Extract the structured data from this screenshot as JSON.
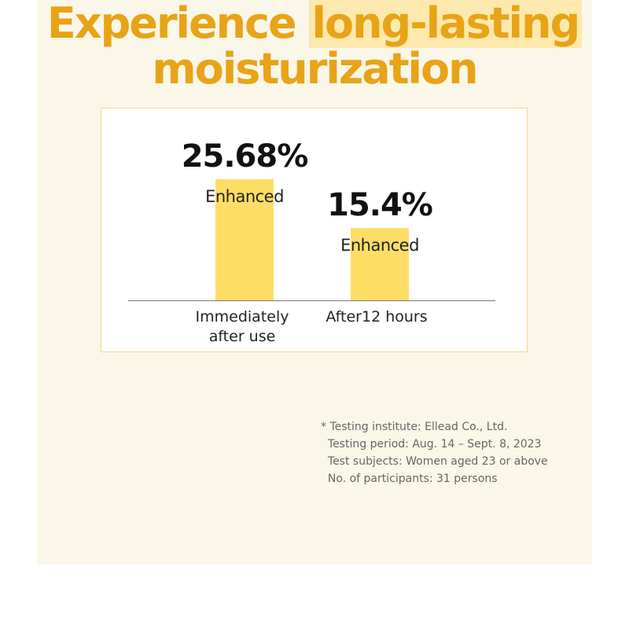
{
  "chart_data": {
    "type": "bar",
    "title": {
      "plain": "Experience",
      "highlight": "long-lasting",
      "line2": "moisturization"
    },
    "categories": [
      "Immediately after use",
      "After12 hours"
    ],
    "values": [
      25.68,
      15.4
    ],
    "value_labels": [
      "25.68%",
      "15.4%"
    ],
    "value_notes": [
      "Enhanced",
      "Enhanced"
    ],
    "color": "#fedd66",
    "footnote": [
      "* Testing institute: Ellead Co., Ltd.",
      "  Testing period: Aug. 14 – Sept. 8, 2023",
      "  Test subjects: Women aged 23 or above",
      "  No. of participants: 31 persons"
    ]
  }
}
